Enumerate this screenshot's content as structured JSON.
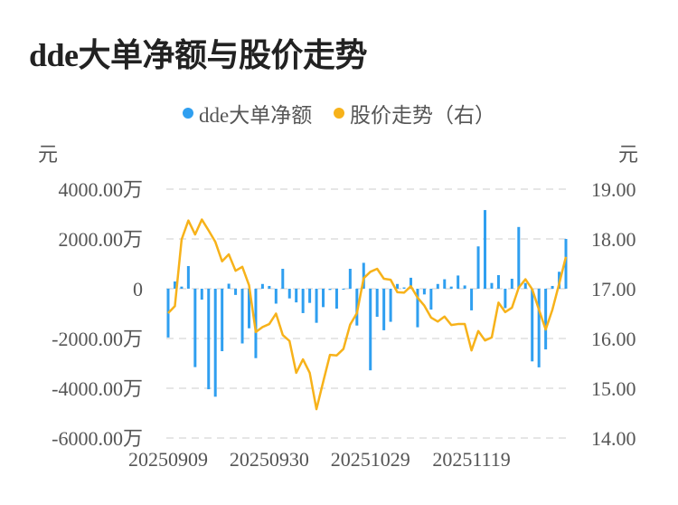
{
  "title": "dde大单净额与股价走势",
  "chart_data": {
    "type": "bar+line",
    "title": "dde大单净额与股价走势",
    "legend": [
      "dde大单净额",
      "股价走势（右）"
    ],
    "legend_position": "top-center",
    "colors": {
      "bars": "#2f9ff0",
      "line": "#f7b21a"
    },
    "ylabel_left": "元",
    "ylabel_right": "元",
    "y_left_ticks": [
      "4000.00万",
      "2000.00万",
      "0",
      "-2000.00万",
      "-4000.00万",
      "-6000.00万"
    ],
    "y_left_range": [
      -6000,
      4000
    ],
    "y_right_ticks": [
      "19.00",
      "18.00",
      "17.00",
      "16.00",
      "15.00",
      "14.00"
    ],
    "y_right_range": [
      14,
      19
    ],
    "x_tick_labels": [
      {
        "index": 0,
        "label": "20250909"
      },
      {
        "index": 15,
        "label": "20250930"
      },
      {
        "index": 30,
        "label": "20251029"
      },
      {
        "index": 45,
        "label": "20251119"
      }
    ],
    "grid": true,
    "series": [
      {
        "name": "dde大单净额",
        "unit": "万",
        "axis": "left",
        "type": "bar",
        "values": [
          -1960,
          290,
          85,
          910,
          -3150,
          -440,
          -4040,
          -4340,
          -2510,
          200,
          -250,
          -2200,
          -1590,
          -2790,
          190,
          110,
          -600,
          800,
          -390,
          -550,
          -980,
          -570,
          -1370,
          -740,
          -50,
          -800,
          -20,
          800,
          -1480,
          1040,
          -3280,
          -1130,
          -1670,
          -1330,
          190,
          50,
          440,
          -1550,
          -230,
          -840,
          190,
          380,
          85,
          530,
          130,
          -870,
          1700,
          3160,
          230,
          545,
          -780,
          400,
          2480,
          230,
          -2920,
          -3160,
          -2440,
          110,
          680,
          2000
        ]
      },
      {
        "name": "股价走势（右）",
        "axis": "right",
        "type": "line",
        "values": [
          16.51,
          16.65,
          17.99,
          18.37,
          18.09,
          18.39,
          18.17,
          17.94,
          17.55,
          17.69,
          17.36,
          17.44,
          17.07,
          16.13,
          16.23,
          16.29,
          16.5,
          16.07,
          15.95,
          15.31,
          15.58,
          15.31,
          14.58,
          15.13,
          15.67,
          15.66,
          15.79,
          16.28,
          16.51,
          17.21,
          17.34,
          17.4,
          17.2,
          17.18,
          16.93,
          16.92,
          17.05,
          16.82,
          16.66,
          16.42,
          16.34,
          16.44,
          16.27,
          16.29,
          16.29,
          15.76,
          16.15,
          15.96,
          16.02,
          16.72,
          16.53,
          16.62,
          17.02,
          17.19,
          16.99,
          16.58,
          16.18,
          16.58,
          17.1,
          17.64
        ]
      }
    ]
  }
}
